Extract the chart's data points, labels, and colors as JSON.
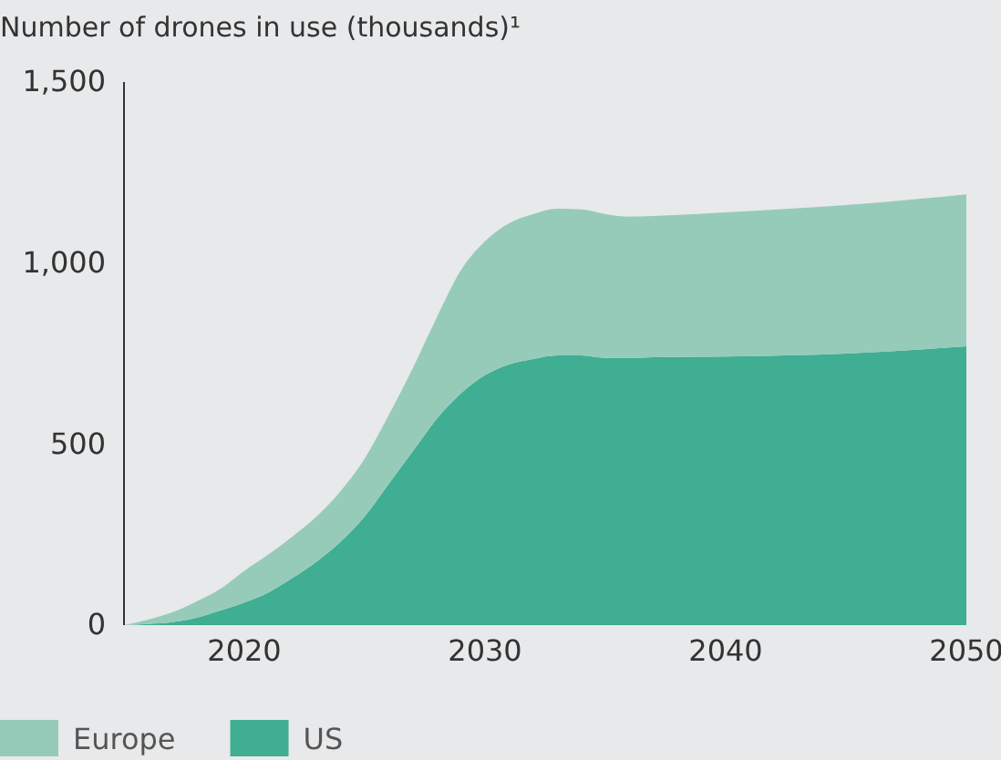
{
  "chart_data": {
    "type": "area",
    "title": "Number of drones in use (thousands)¹",
    "stacked": true,
    "legend": "bottom",
    "x": [
      2015,
      2016,
      2017,
      2018,
      2019,
      2020,
      2021,
      2022,
      2023,
      2024,
      2025,
      2026,
      2027,
      2028,
      2029,
      2030,
      2031,
      2032,
      2033,
      2034,
      2035,
      2036,
      2037,
      2040,
      2045,
      2050
    ],
    "series": [
      {
        "name": "US",
        "color": "#3fae93",
        "values": [
          0,
          3,
          8,
          20,
          40,
          62,
          90,
          130,
          175,
          230,
          300,
          390,
          480,
          570,
          640,
          690,
          720,
          735,
          745,
          745,
          738,
          738,
          740,
          742,
          750,
          770
        ]
      },
      {
        "name": "Europe",
        "color": "#96cbb9",
        "values": [
          0,
          12,
          27,
          45,
          60,
          88,
          105,
          115,
          125,
          140,
          160,
          190,
          230,
          280,
          340,
          370,
          390,
          400,
          405,
          403,
          397,
          390,
          390,
          398,
          410,
          420
        ]
      }
    ],
    "xlim": [
      2015,
      2050
    ],
    "xticks": [
      2020,
      2030,
      2040,
      2050
    ],
    "ylim": [
      0,
      1500
    ],
    "yticks": [
      {
        "value": 0,
        "label": "0"
      },
      {
        "value": 500,
        "label": "500"
      },
      {
        "value": 1000,
        "label": "1,000"
      },
      {
        "value": 1500,
        "label": "1,500"
      }
    ]
  }
}
